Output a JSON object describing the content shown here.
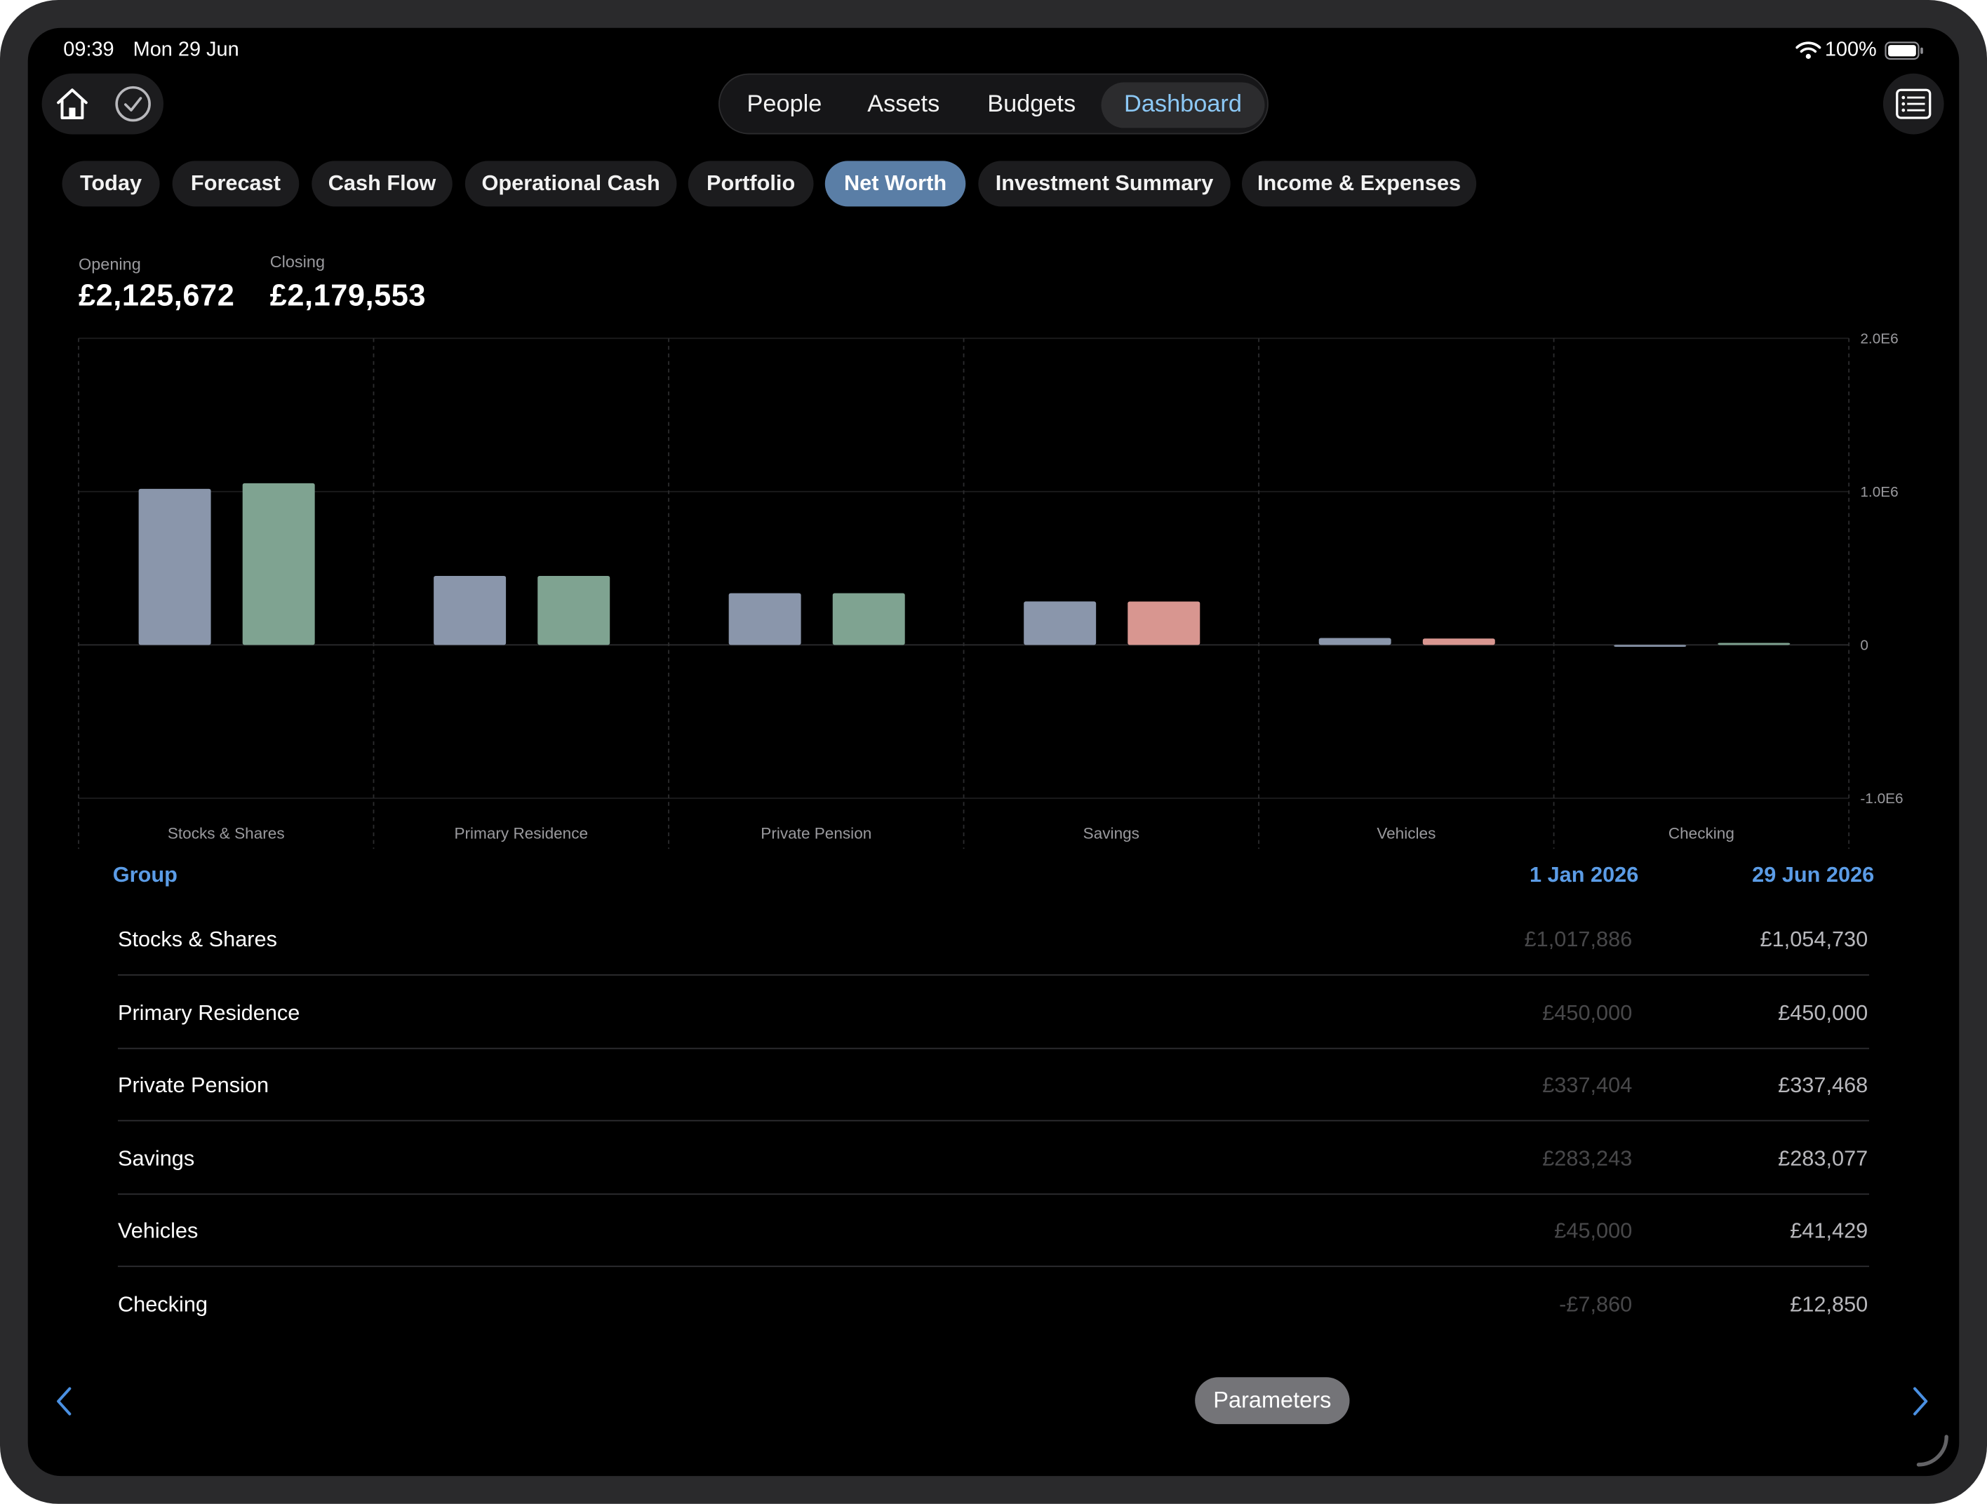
{
  "status_bar": {
    "time": "09:39",
    "date": "Mon 29 Jun",
    "battery": "100%"
  },
  "icons": {
    "home": "home-icon",
    "done": "checkmark-circle-icon",
    "list": "list-icon",
    "wifi": "wifi-icon",
    "battery": "battery-icon",
    "prev": "chevron-left-icon",
    "next": "chevron-right-icon"
  },
  "top_tabs": [
    {
      "label": "People",
      "active": false
    },
    {
      "label": "Assets",
      "active": false
    },
    {
      "label": "Budgets",
      "active": false
    },
    {
      "label": "Dashboard",
      "active": true
    }
  ],
  "report_tabs": [
    {
      "label": "Today",
      "active": false
    },
    {
      "label": "Forecast",
      "active": false
    },
    {
      "label": "Cash Flow",
      "active": false
    },
    {
      "label": "Operational Cash",
      "active": false
    },
    {
      "label": "Portfolio",
      "active": false
    },
    {
      "label": "Net Worth",
      "active": true
    },
    {
      "label": "Investment Summary",
      "active": false
    },
    {
      "label": "Income & Expenses",
      "active": false
    }
  ],
  "summary": {
    "opening_label": "Opening",
    "opening_value": "£2,125,672",
    "closing_label": "Closing",
    "closing_value": "£2,179,553"
  },
  "chart_data": {
    "type": "bar",
    "categories": [
      "Stocks & Shares",
      "Primary Residence",
      "Private Pension",
      "Savings",
      "Vehicles",
      "Checking"
    ],
    "series": [
      {
        "values": [
          1017886,
          450000,
          337404,
          283243,
          45000,
          -7860
        ],
        "color": "#8a96ab"
      },
      {
        "values": [
          1054730,
          450000,
          337468,
          283077,
          41429,
          12850
        ],
        "colors": [
          "#7fa391",
          "#7fa391",
          "#7fa391",
          "#d89690",
          "#d89690",
          "#7fa391"
        ]
      }
    ],
    "ylim": [
      -1000000,
      2000000
    ],
    "ytick_labels": [
      "2.0E6",
      "1.0E6",
      "0",
      "-1.0E6"
    ],
    "yticks": [
      2000000,
      1000000,
      0,
      -1000000
    ],
    "grid": true,
    "y_axis_side": "right"
  },
  "table": {
    "headers": {
      "group": "Group",
      "opening_date": "1 Jan 2026",
      "closing_date": "29 Jun 2026"
    },
    "rows": [
      {
        "group": "Stocks & Shares",
        "opening": "£1,017,886",
        "closing": "£1,054,730"
      },
      {
        "group": "Primary Residence",
        "opening": "£450,000",
        "closing": "£450,000"
      },
      {
        "group": "Private Pension",
        "opening": "£337,404",
        "closing": "£337,468"
      },
      {
        "group": "Savings",
        "opening": "£283,243",
        "closing": "£283,077"
      },
      {
        "group": "Vehicles",
        "opening": "£45,000",
        "closing": "£41,429"
      },
      {
        "group": "Checking",
        "opening": "-£7,860",
        "closing": "£12,850"
      }
    ]
  },
  "footer": {
    "parameters_label": "Parameters"
  }
}
